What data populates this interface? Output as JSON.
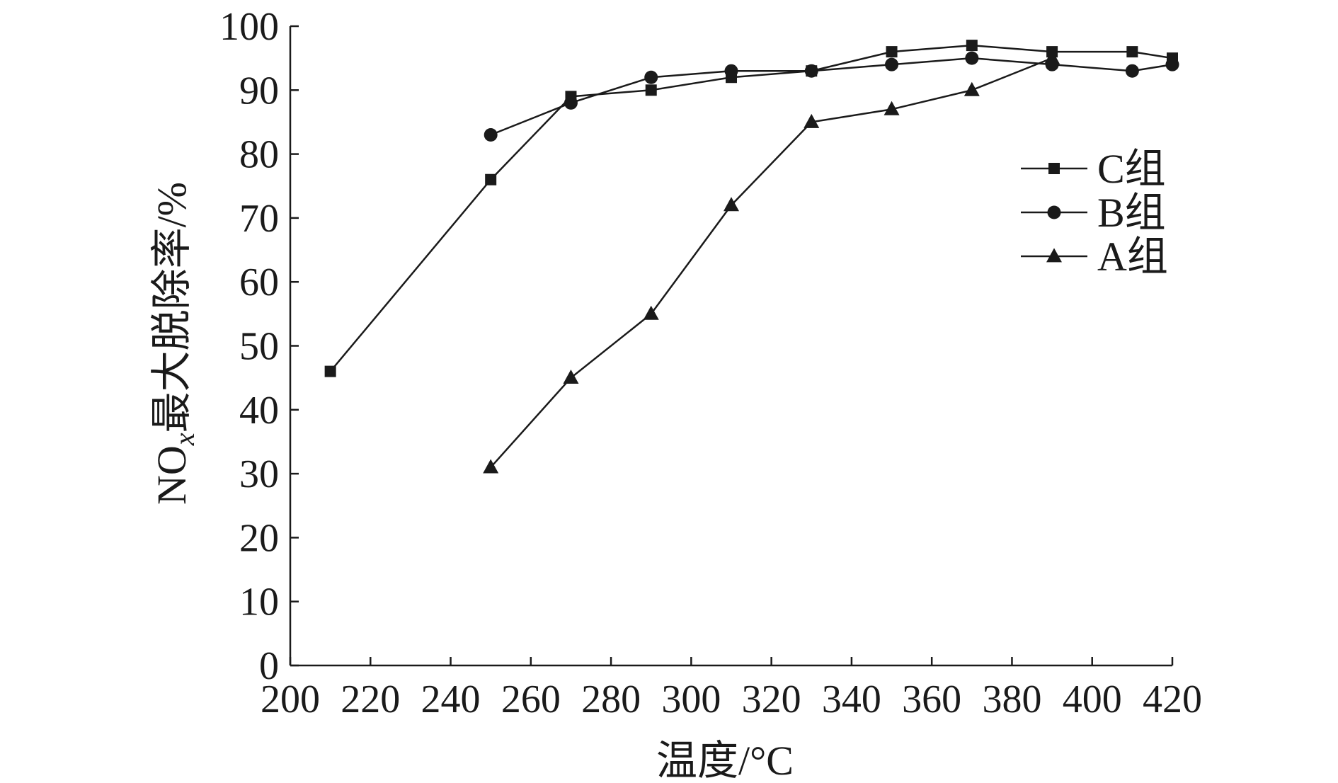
{
  "chart_data": {
    "type": "line",
    "xlabel": "温度/°C",
    "ylabel": {
      "main": "NO",
      "subscript": "x",
      "rest": "最大脱除率/%"
    },
    "xlim": [
      200,
      420
    ],
    "ylim": [
      0,
      100
    ],
    "xticks": [
      200,
      220,
      240,
      260,
      280,
      300,
      320,
      340,
      360,
      380,
      400,
      420
    ],
    "yticks": [
      0,
      10,
      20,
      30,
      40,
      50,
      60,
      70,
      80,
      90,
      100
    ],
    "grid": false,
    "legend_position": "right",
    "series": [
      {
        "name": "C组",
        "marker": "square",
        "color": "#1a1a1a",
        "x": [
          210,
          250,
          270,
          290,
          310,
          330,
          350,
          370,
          390,
          410,
          420
        ],
        "y": [
          46,
          76,
          89,
          90,
          92,
          93,
          96,
          97,
          96,
          96,
          95
        ]
      },
      {
        "name": "B组",
        "marker": "circle",
        "color": "#1a1a1a",
        "x": [
          250,
          270,
          290,
          310,
          330,
          350,
          370,
          390,
          410,
          420
        ],
        "y": [
          83,
          88,
          92,
          93,
          93,
          94,
          95,
          94,
          93,
          94
        ]
      },
      {
        "name": "A组",
        "marker": "triangle",
        "color": "#1a1a1a",
        "x": [
          250,
          270,
          290,
          310,
          330,
          350,
          370,
          390
        ],
        "y": [
          31,
          45,
          55,
          72,
          85,
          87,
          90,
          95
        ]
      }
    ]
  }
}
